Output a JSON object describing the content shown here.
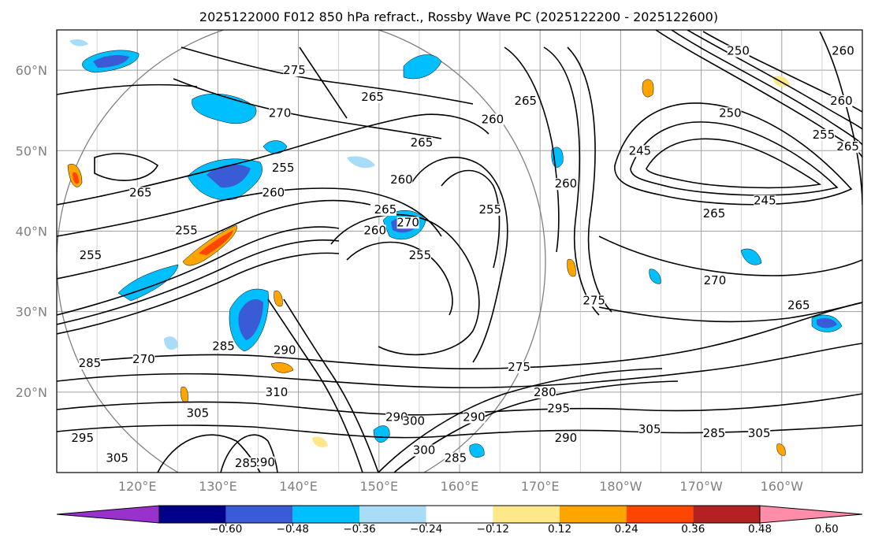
{
  "chart_data": {
    "type": "contour",
    "title": "2025122000 F012 850 hPa refract., Rossby Wave PC (2025122200 - 2025122600)",
    "lat_ticks": [
      {
        "value": 20,
        "label": "20°N"
      },
      {
        "value": 30,
        "label": "30°N"
      },
      {
        "value": 40,
        "label": "40°N"
      },
      {
        "value": 50,
        "label": "50°N"
      },
      {
        "value": 60,
        "label": "60°N"
      }
    ],
    "lon_ticks": [
      {
        "value": 120,
        "label": "120°E"
      },
      {
        "value": 130,
        "label": "130°E"
      },
      {
        "value": 140,
        "label": "140°E"
      },
      {
        "value": 150,
        "label": "150°E"
      },
      {
        "value": 160,
        "label": "160°E"
      },
      {
        "value": 170,
        "label": "170°E"
      },
      {
        "value": 180,
        "label": "180°W"
      },
      {
        "value": 190,
        "label": "170°W"
      },
      {
        "value": 200,
        "label": "160°W"
      }
    ],
    "lon_range": [
      110,
      210
    ],
    "lat_range": [
      10,
      65
    ],
    "grid": true,
    "colorbar": {
      "bounds": [
        -0.6,
        -0.48,
        -0.36,
        -0.24,
        -0.12,
        0.12,
        0.24,
        0.36,
        0.48,
        0.6
      ],
      "labels": [
        "−0.60",
        "−0.48",
        "−0.36",
        "−0.24",
        "−0.12",
        "0.12",
        "0.24",
        "0.36",
        "0.48",
        "0.60"
      ],
      "under_color": "#9932cc",
      "over_color": "#ff8ca8",
      "colors": [
        "#000088",
        "#3a5bd6",
        "#00bfff",
        "#a9ddf7",
        "#ffffff",
        "#ffe88a",
        "#ffa500",
        "#ff4500",
        "#b22222"
      ]
    },
    "contour_labels": [
      {
        "text": "275",
        "lon": 139.5,
        "lat": 59.7
      },
      {
        "text": "265",
        "lon": 149.2,
        "lat": 56.4
      },
      {
        "text": "270",
        "lon": 137.7,
        "lat": 54.4
      },
      {
        "text": "265",
        "lon": 155.3,
        "lat": 50.7
      },
      {
        "text": "260",
        "lon": 164.1,
        "lat": 53.6
      },
      {
        "text": "265",
        "lon": 168.2,
        "lat": 55.9
      },
      {
        "text": "250",
        "lon": 194.6,
        "lat": 62.1
      },
      {
        "text": "260",
        "lon": 207.6,
        "lat": 62.1
      },
      {
        "text": "250",
        "lon": 193.6,
        "lat": 54.4
      },
      {
        "text": "260",
        "lon": 207.4,
        "lat": 55.9
      },
      {
        "text": "255",
        "lon": 205.2,
        "lat": 51.7
      },
      {
        "text": "265",
        "lon": 208.2,
        "lat": 50.2
      },
      {
        "text": "245",
        "lon": 182.4,
        "lat": 49.7
      },
      {
        "text": "260",
        "lon": 173.2,
        "lat": 45.6
      },
      {
        "text": "245",
        "lon": 197.9,
        "lat": 43.5
      },
      {
        "text": "265",
        "lon": 191.6,
        "lat": 41.9
      },
      {
        "text": "265",
        "lon": 120.4,
        "lat": 44.5
      },
      {
        "text": "255",
        "lon": 138.1,
        "lat": 47.6
      },
      {
        "text": "260",
        "lon": 136.9,
        "lat": 44.5
      },
      {
        "text": "260",
        "lon": 152.8,
        "lat": 46.1
      },
      {
        "text": "255",
        "lon": 163.8,
        "lat": 42.4
      },
      {
        "text": "265",
        "lon": 150.8,
        "lat": 42.4
      },
      {
        "text": "270",
        "lon": 153.6,
        "lat": 40.8
      },
      {
        "text": "260",
        "lon": 149.5,
        "lat": 39.8
      },
      {
        "text": "255",
        "lon": 155.1,
        "lat": 36.7
      },
      {
        "text": "255",
        "lon": 126.1,
        "lat": 39.8
      },
      {
        "text": "255",
        "lon": 114.2,
        "lat": 36.7
      },
      {
        "text": "270",
        "lon": 191.7,
        "lat": 33.6
      },
      {
        "text": "275",
        "lon": 176.7,
        "lat": 31.1
      },
      {
        "text": "265",
        "lon": 202.1,
        "lat": 30.5
      },
      {
        "text": "285",
        "lon": 114.1,
        "lat": 23.3
      },
      {
        "text": "270",
        "lon": 120.8,
        "lat": 23.8
      },
      {
        "text": "285",
        "lon": 130.7,
        "lat": 25.4
      },
      {
        "text": "290",
        "lon": 138.3,
        "lat": 24.9
      },
      {
        "text": "310",
        "lon": 137.3,
        "lat": 19.7
      },
      {
        "text": "275",
        "lon": 167.4,
        "lat": 22.8
      },
      {
        "text": "280",
        "lon": 170.6,
        "lat": 19.7
      },
      {
        "text": "295",
        "lon": 172.3,
        "lat": 17.7
      },
      {
        "text": "290",
        "lon": 152.2,
        "lat": 16.6
      },
      {
        "text": "300",
        "lon": 154.3,
        "lat": 16.1
      },
      {
        "text": "290",
        "lon": 161.8,
        "lat": 16.6
      },
      {
        "text": "305",
        "lon": 183.6,
        "lat": 15.1
      },
      {
        "text": "285",
        "lon": 191.6,
        "lat": 14.6
      },
      {
        "text": "305",
        "lon": 197.2,
        "lat": 14.6
      },
      {
        "text": "295",
        "lon": 113.2,
        "lat": 14.0
      },
      {
        "text": "305",
        "lon": 117.5,
        "lat": 11.5
      },
      {
        "text": "305",
        "lon": 127.5,
        "lat": 17.1
      },
      {
        "text": "290",
        "lon": 135.7,
        "lat": 11.0
      },
      {
        "text": "285",
        "lon": 133.5,
        "lat": 10.9
      },
      {
        "text": "290",
        "lon": 173.2,
        "lat": 14.0
      },
      {
        "text": "300",
        "lon": 155.6,
        "lat": 12.5
      },
      {
        "text": "285",
        "lon": 159.5,
        "lat": 11.5
      }
    ]
  }
}
